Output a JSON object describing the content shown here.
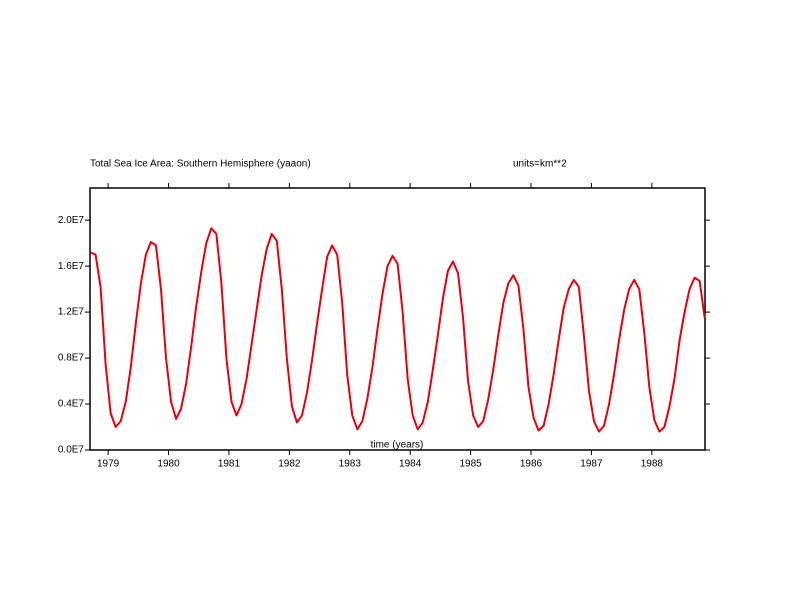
{
  "chart_data": {
    "type": "line",
    "title": "Total Sea Ice Area: Southern Hemisphere (yaaon)",
    "subtitle": "units=km**2",
    "x_label": "time (years)",
    "xlim": [
      1978.7,
      1988.88
    ],
    "xticks": [
      1979,
      1980,
      1981,
      1982,
      1983,
      1984,
      1985,
      1986,
      1987,
      1988
    ],
    "ylim": [
      0,
      22800000
    ],
    "yticks": [
      {
        "value": 0,
        "label": "0.0E7"
      },
      {
        "value": 4000000,
        "label": "0.4E7"
      },
      {
        "value": 8000000,
        "label": "0.8E7"
      },
      {
        "value": 12000000,
        "label": "1.2E7"
      },
      {
        "value": 16000000,
        "label": "1.6E7"
      },
      {
        "value": 20000000,
        "label": "2.0E7"
      }
    ],
    "x": [
      1978.708,
      1978.792,
      1978.875,
      1978.958,
      1979.042,
      1979.125,
      1979.208,
      1979.292,
      1979.375,
      1979.458,
      1979.542,
      1979.625,
      1979.708,
      1979.792,
      1979.875,
      1979.958,
      1980.042,
      1980.125,
      1980.208,
      1980.292,
      1980.375,
      1980.458,
      1980.542,
      1980.625,
      1980.708,
      1980.792,
      1980.875,
      1980.958,
      1981.042,
      1981.125,
      1981.208,
      1981.292,
      1981.375,
      1981.458,
      1981.542,
      1981.625,
      1981.708,
      1981.792,
      1981.875,
      1981.958,
      1982.042,
      1982.125,
      1982.208,
      1982.292,
      1982.375,
      1982.458,
      1982.542,
      1982.625,
      1982.708,
      1982.792,
      1982.875,
      1982.958,
      1983.042,
      1983.125,
      1983.208,
      1983.292,
      1983.375,
      1983.458,
      1983.542,
      1983.625,
      1983.708,
      1983.792,
      1983.875,
      1983.958,
      1984.042,
      1984.125,
      1984.208,
      1984.292,
      1984.375,
      1984.458,
      1984.542,
      1984.625,
      1984.708,
      1984.792,
      1984.875,
      1984.958,
      1985.042,
      1985.125,
      1985.208,
      1985.292,
      1985.375,
      1985.458,
      1985.542,
      1985.625,
      1985.708,
      1985.792,
      1985.875,
      1985.958,
      1986.042,
      1986.125,
      1986.208,
      1986.292,
      1986.375,
      1986.458,
      1986.542,
      1986.625,
      1986.708,
      1986.792,
      1986.875,
      1986.958,
      1987.042,
      1987.125,
      1987.208,
      1987.292,
      1987.375,
      1987.458,
      1987.542,
      1987.625,
      1987.708,
      1987.792,
      1987.875,
      1987.958,
      1988.042,
      1988.125,
      1988.208,
      1988.292,
      1988.375,
      1988.458,
      1988.542,
      1988.625,
      1988.708,
      1988.792,
      1988.875
    ],
    "series": [
      {
        "color": "#e8000b",
        "values": [
          17200000,
          17000000,
          14200000,
          7500000,
          3200000,
          2000000,
          2500000,
          4200000,
          7200000,
          11000000,
          14500000,
          17000000,
          18100000,
          17800000,
          14000000,
          8000000,
          4200000,
          2700000,
          3600000,
          5800000,
          9000000,
          12500000,
          15500000,
          18000000,
          19300000,
          18800000,
          14500000,
          8000000,
          4200000,
          3000000,
          4000000,
          6200000,
          9200000,
          12200000,
          15200000,
          17500000,
          18800000,
          18200000,
          14000000,
          8000000,
          3800000,
          2400000,
          3000000,
          5000000,
          7800000,
          11000000,
          14000000,
          16800000,
          17800000,
          17000000,
          12800000,
          6500000,
          3000000,
          1800000,
          2500000,
          4500000,
          7200000,
          10500000,
          13600000,
          16000000,
          16900000,
          16200000,
          12000000,
          6200000,
          3000000,
          1800000,
          2400000,
          4200000,
          7000000,
          10000000,
          13200000,
          15600000,
          16400000,
          15400000,
          11500000,
          6000000,
          3000000,
          2000000,
          2500000,
          4400000,
          7000000,
          10000000,
          12800000,
          14500000,
          15200000,
          14300000,
          10500000,
          5500000,
          2800000,
          1700000,
          2100000,
          4000000,
          6600000,
          9600000,
          12400000,
          14000000,
          14800000,
          14200000,
          10000000,
          5200000,
          2500000,
          1600000,
          2100000,
          4000000,
          6600000,
          9600000,
          12200000,
          14000000,
          14800000,
          14000000,
          10200000,
          5500000,
          2600000,
          1600000,
          2000000,
          3800000,
          6200000,
          9500000,
          12000000,
          14000000,
          15000000,
          14700000,
          11500000
        ]
      }
    ]
  }
}
